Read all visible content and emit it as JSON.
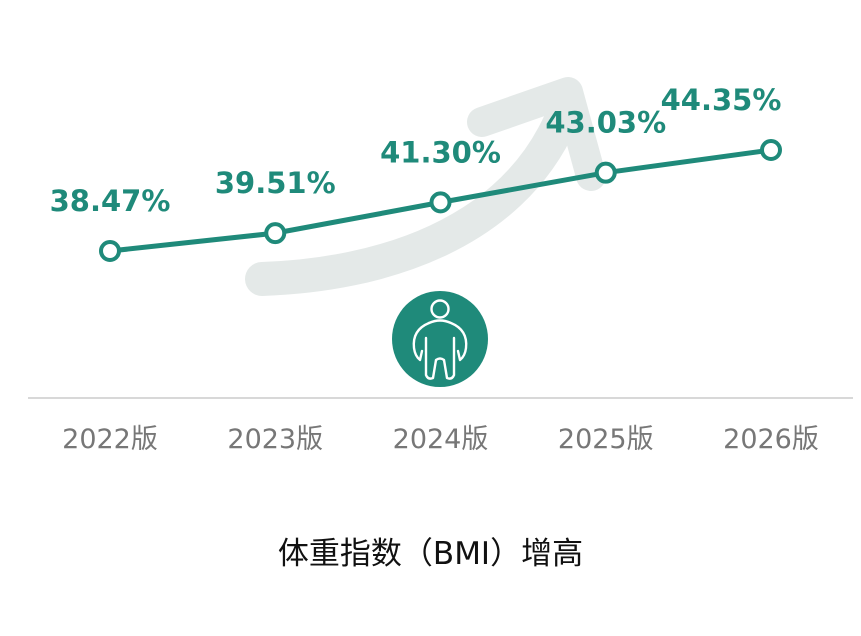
{
  "colors": {
    "series": "#1f8a7a",
    "trend_arrow": "#e4e9e8",
    "axis": "#d8d8d8",
    "tick_text": "#777777",
    "icon_bg": "#1f8a7a",
    "icon_fg": "#ffffff"
  },
  "icons": {
    "center": "person-body-icon",
    "background": "trend-up-arrow-icon"
  },
  "chart_data": {
    "type": "line",
    "categories": [
      "2022版",
      "2023版",
      "2024版",
      "2025版",
      "2026版"
    ],
    "series": [
      {
        "values": [
          38.47,
          39.51,
          41.3,
          43.03,
          44.35
        ],
        "labels": [
          "38.47%",
          "39.51%",
          "41.30%",
          "43.03%",
          "44.35%"
        ]
      }
    ],
    "xlabel": "体重指数（BMI）增高",
    "ylabel": "",
    "grid": false,
    "legend": "none"
  }
}
